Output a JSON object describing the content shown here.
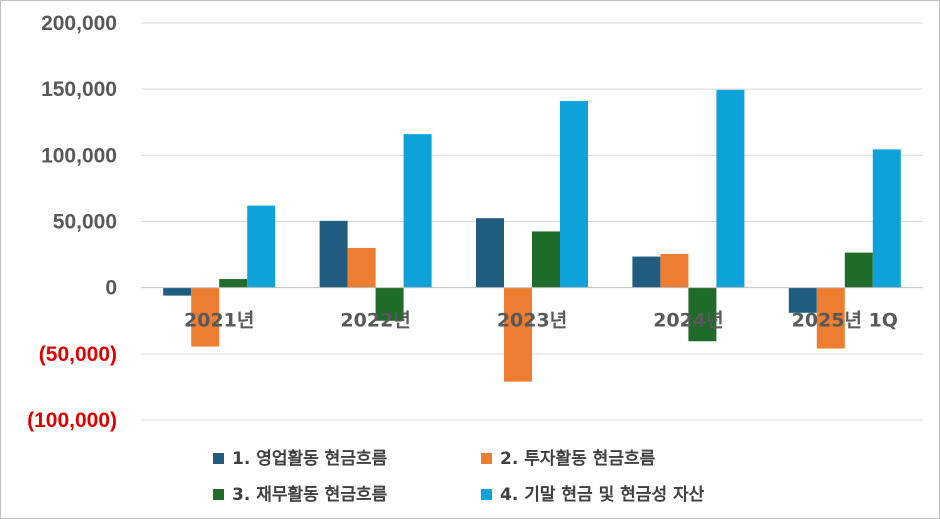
{
  "chart_data": {
    "type": "bar",
    "categories": [
      "2021년",
      "2022년",
      "2023년",
      "2024년",
      "2025년 1Q"
    ],
    "series": [
      {
        "name": "1. 영업활동 현금흐름",
        "color": "#1f5c80",
        "values": [
          -6000,
          50500,
          52500,
          23500,
          -19000
        ]
      },
      {
        "name": "2. 투자활동 현금흐름",
        "color": "#ed7d31",
        "values": [
          -44500,
          30000,
          -71000,
          25500,
          -46000
        ]
      },
      {
        "name": "3. 재무활동 현금흐름",
        "color": "#1e6b2a",
        "values": [
          6500,
          -25000,
          42500,
          -40500,
          26500
        ]
      },
      {
        "name": "4. 기말 현금 및 현금성 자산",
        "color": "#0ea2da",
        "values": [
          62000,
          116000,
          141000,
          149500,
          104500
        ]
      }
    ],
    "ylim": [
      -100000,
      200000
    ],
    "yticks": [
      "200,000",
      "150,000",
      "100,000",
      "50,000",
      "0",
      "(50,000)",
      "(100,000)"
    ],
    "ytick_values": [
      200000,
      150000,
      100000,
      50000,
      0,
      -50000,
      -100000
    ],
    "negative_tick_color": "#e00000",
    "positive_tick_color": "#595959",
    "grid": true,
    "legend_position": "bottom",
    "title": "",
    "xlabel": "",
    "ylabel": ""
  }
}
